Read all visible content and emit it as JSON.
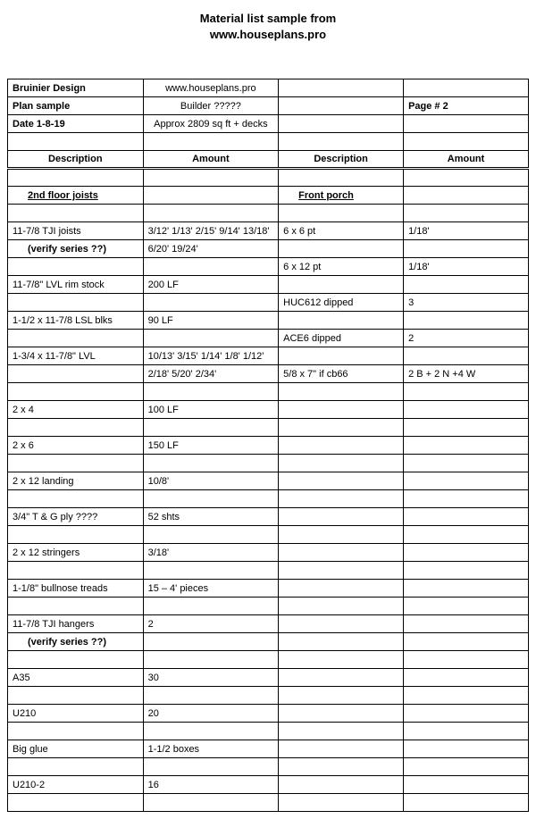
{
  "title_line1": "Material list sample from",
  "title_line2": "www.houseplans.pro",
  "header": {
    "r1c1": "Bruinier Design",
    "r1c2": "www.houseplans.pro",
    "r1c3": "",
    "r1c4": "",
    "r2c1": "Plan sample",
    "r2c2": "Builder ?????",
    "r2c3": "",
    "r2c4": "Page # 2",
    "r3c1": "Date   1-8-19",
    "r3c2": "Approx 2809 sq ft + decks",
    "r3c3": "",
    "r3c4": ""
  },
  "colhead": {
    "c1": "Description",
    "c2": "Amount",
    "c3": "Description",
    "c4": "Amount"
  },
  "sections": {
    "left": "2nd floor joists",
    "right": "Front porch"
  },
  "rows": [
    {
      "a": "11-7/8 TJI  joists",
      "b": "3/12' 1/13' 2/15' 9/14' 13/18'",
      "c": "6 x 6 pt",
      "d": "1/18'"
    },
    {
      "a_indent": true,
      "a_bold": true,
      "a": "(verify series ??)",
      "b": "6/20'  19/24'",
      "c": "",
      "d": ""
    },
    {
      "a": "",
      "b": "",
      "c": "6 x 12 pt",
      "d": "1/18'"
    },
    {
      "a": "11-7/8\"  LVL rim stock",
      "b": "200 LF",
      "c": "",
      "d": ""
    },
    {
      "a": "",
      "b": "",
      "c": "HUC612  dipped",
      "d": "3"
    },
    {
      "a": "1-1/2 x 11-7/8 LSL blks",
      "b": "90 LF",
      "c": "",
      "d": ""
    },
    {
      "a": "",
      "b": "",
      "c": "ACE6  dipped",
      "d": "2"
    },
    {
      "a": "1-3/4 x 11-7/8\"  LVL",
      "b": "10/13' 3/15' 1/14' 1/8' 1/12'",
      "c": "",
      "d": ""
    },
    {
      "a": "",
      "b": "2/18'  5/20'  2/34'",
      "c": "5/8 x 7\" if cb66",
      "d": "2 B + 2 N +4 W"
    },
    {
      "a": "",
      "b": "",
      "c": "",
      "d": ""
    },
    {
      "a": "2 x 4",
      "b": "100 LF",
      "c": "",
      "d": ""
    },
    {
      "a": "",
      "b": "",
      "c": "",
      "d": ""
    },
    {
      "a": "2 x 6",
      "b": "150 LF",
      "c": "",
      "d": ""
    },
    {
      "a": "",
      "b": "",
      "c": "",
      "d": ""
    },
    {
      "a": "2 x 12 landing",
      "b": "10/8'",
      "c": "",
      "d": ""
    },
    {
      "a": "",
      "b": "",
      "c": "",
      "d": ""
    },
    {
      "a": "3/4\" T & G ply ????",
      "b": "52 shts",
      "c": "",
      "d": ""
    },
    {
      "a": "",
      "b": "",
      "c": "",
      "d": ""
    },
    {
      "a": "2 x 12 stringers",
      "b": "3/18'",
      "c": "",
      "d": ""
    },
    {
      "a": "",
      "b": "",
      "c": "",
      "d": ""
    },
    {
      "a": "1-1/8\" bullnose treads",
      "b": "15 – 4' pieces",
      "c": "",
      "d": ""
    },
    {
      "a": "",
      "b": "",
      "c": "",
      "d": ""
    },
    {
      "a": "11-7/8 TJI  hangers",
      "b": "2",
      "c": "",
      "d": ""
    },
    {
      "a_indent": true,
      "a_bold": true,
      "a": "(verify series ??)",
      "b": "",
      "c": "",
      "d": ""
    },
    {
      "a": "",
      "b": "",
      "c": "",
      "d": ""
    },
    {
      "a": "A35",
      "b": "30",
      "c": "",
      "d": ""
    },
    {
      "a": "",
      "b": "",
      "c": "",
      "d": ""
    },
    {
      "a": "U210",
      "b": "20",
      "c": "",
      "d": ""
    },
    {
      "a": "",
      "b": "",
      "c": "",
      "d": ""
    },
    {
      "a": "Big glue",
      "b": "1-1/2 boxes",
      "c": "",
      "d": ""
    },
    {
      "a": "",
      "b": "",
      "c": "",
      "d": ""
    },
    {
      "a": "U210-2",
      "b": "16",
      "c": "",
      "d": ""
    },
    {
      "a": "",
      "b": "",
      "c": "",
      "d": ""
    }
  ]
}
